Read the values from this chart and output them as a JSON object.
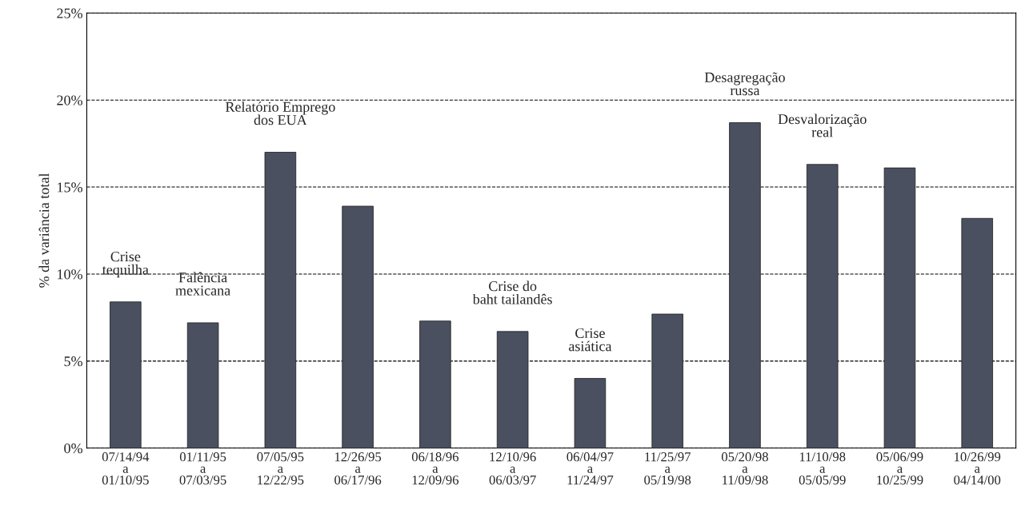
{
  "chart_data": {
    "type": "bar",
    "ylabel": "% da variância total",
    "categories": [
      "07/14/94\na\n01/10/95",
      "01/11/95\na\n07/03/95",
      "07/05/95\na\n12/22/95",
      "12/26/95\na\n06/17/96",
      "06/18/96\na\n12/09/96",
      "12/10/96\na\n06/03/97",
      "06/04/97\na\n11/24/97",
      "11/25/97\na\n05/19/98",
      "05/20/98\na\n11/09/98",
      "11/10/98\na\n05/05/99",
      "05/06/99\na\n10/25/99",
      "10/26/99\na\n04/14/00"
    ],
    "values": [
      8.4,
      7.2,
      17.0,
      13.9,
      7.3,
      6.7,
      4.0,
      7.7,
      18.7,
      16.3,
      16.1,
      13.2
    ],
    "color": "#4a5060",
    "ylim": [
      0,
      25
    ],
    "yticks": [
      {
        "value": 0,
        "label": "0%"
      },
      {
        "value": 5,
        "label": "5%"
      },
      {
        "value": 10,
        "label": "10%"
      },
      {
        "value": 15,
        "label": "15%"
      },
      {
        "value": 20,
        "label": "20%"
      },
      {
        "value": 25,
        "label": "25%"
      }
    ],
    "grid": "y",
    "annotations": [
      {
        "text": "Crise\ntequilha",
        "x": "07/14/94\na\n01/10/95",
        "y": 8.4
      },
      {
        "text": "Falência\nmexicana",
        "x": "01/11/95\na\n07/03/95",
        "y": 7.2
      },
      {
        "text": "Relatório Emprego\ndos EUA",
        "x": "07/05/95\na\n12/22/95",
        "y": 17.0
      },
      {
        "text": "Crise do\nbaht tailandês",
        "x": "12/10/96\na\n06/03/97",
        "y": 6.7
      },
      {
        "text": "Crise\nasiática",
        "x": "06/04/97\na\n11/24/97",
        "y": 4.0
      },
      {
        "text": "Desagregação\nrussa",
        "x": "05/20/98\na\n11/09/98",
        "y": 18.7
      },
      {
        "text": "Desvalorização\nreal",
        "x": "11/10/98\na\n05/05/99",
        "y": 16.3
      }
    ]
  }
}
